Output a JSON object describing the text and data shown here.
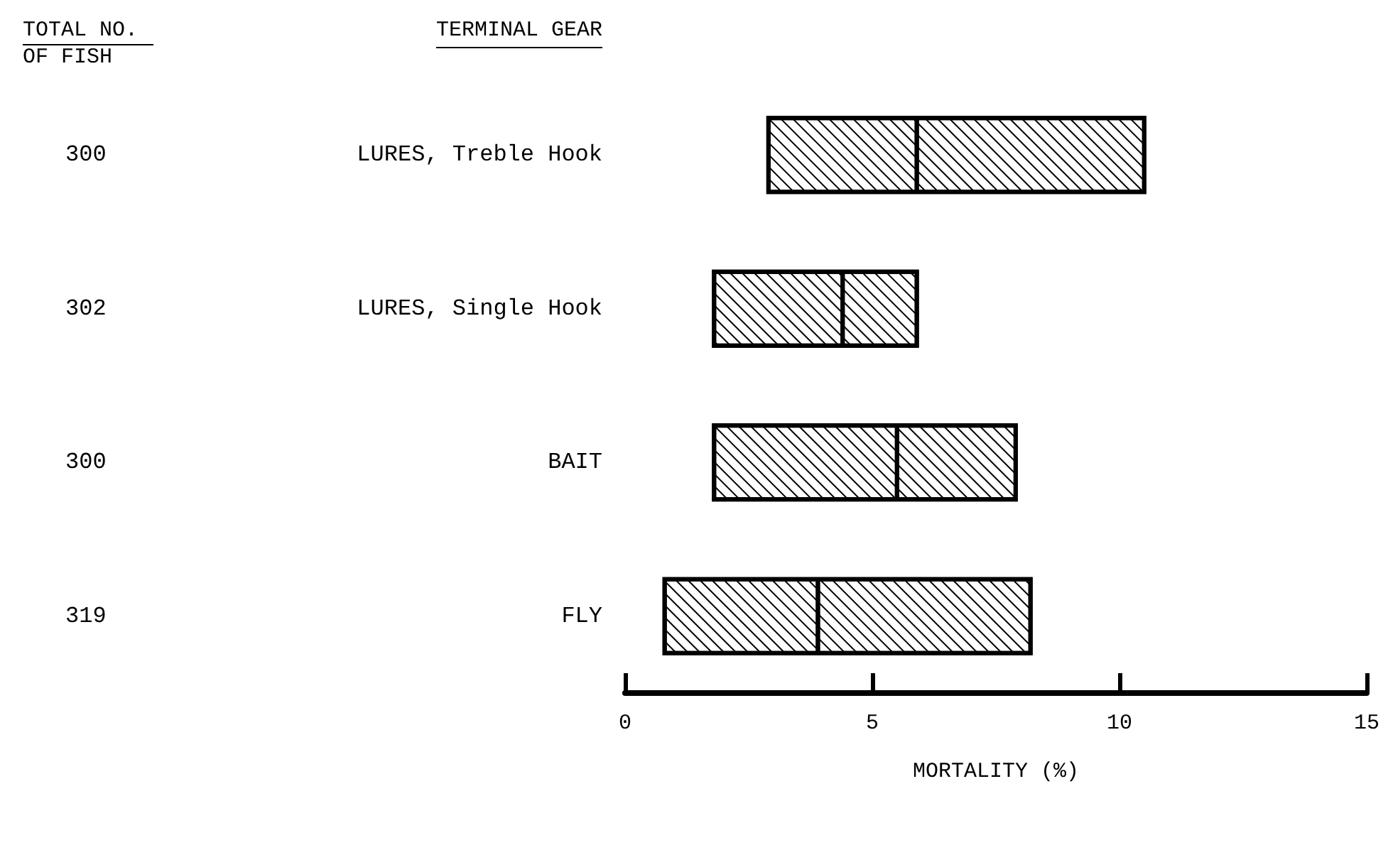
{
  "chart_data": {
    "type": "box",
    "orientation": "horizontal",
    "ylabel": "TERMINAL GEAR",
    "xlabel": "MORTALITY (%)",
    "categories": [
      "LURES, Treble Hook",
      "LURES, Single Hook",
      "BAIT",
      "FLY"
    ],
    "boxes": [
      {
        "low": 2.9,
        "q1": 2.9,
        "median": 5.9,
        "q3": 10.5,
        "high": 10.5
      },
      {
        "low": 1.8,
        "q1": 1.8,
        "median": 4.4,
        "q3": 5.9,
        "high": 5.9
      },
      {
        "low": 1.8,
        "q1": 1.8,
        "median": 5.5,
        "q3": 7.9,
        "high": 7.9
      },
      {
        "low": 0.8,
        "q1": 0.8,
        "median": 3.9,
        "q3": 8.2,
        "high": 8.2
      }
    ],
    "color": "#000000",
    "xlim": [
      0,
      15
    ],
    "xticks": [
      0,
      5,
      10,
      15
    ],
    "annotations": [
      "TOTAL NO. OF FISH",
      "300",
      "302",
      "300",
      "319"
    ],
    "grid": false
  }
}
